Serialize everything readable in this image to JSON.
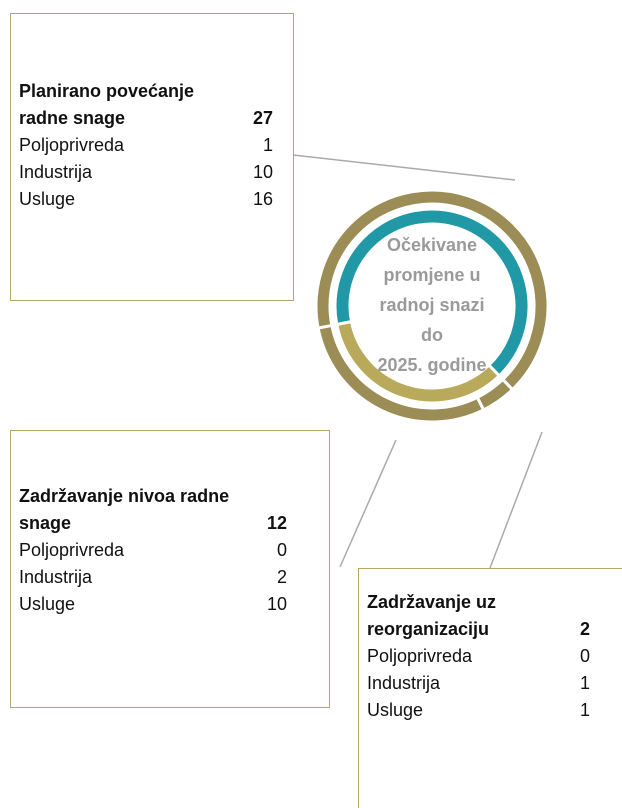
{
  "chart_data": {
    "type": "donut",
    "center_label": [
      "Očekivane",
      "promjene u",
      "radnoj snazi",
      "do",
      "2025. godine"
    ],
    "outer_color": "#9c8c55",
    "inner_colors": [
      "#2198a6",
      "#b9aa5b"
    ],
    "groups": [
      {
        "name": "Planirano povećanje radne snage",
        "value": 27,
        "breakdown": [
          {
            "name": "Poljoprivreda",
            "value": 1
          },
          {
            "name": "Industrija",
            "value": 10
          },
          {
            "name": "Usluge",
            "value": 16
          }
        ]
      },
      {
        "name": "Zadržavanje uz reorganizaciju",
        "value": 2,
        "breakdown": [
          {
            "name": "Poljoprivreda",
            "value": 0
          },
          {
            "name": "Industrija",
            "value": 1
          },
          {
            "name": "Usluge",
            "value": 1
          }
        ]
      },
      {
        "name": "Zadržavanje nivoa radne snage",
        "value": 12,
        "breakdown": [
          {
            "name": "Poljoprivreda",
            "value": 0
          },
          {
            "name": "Industrija",
            "value": 2
          },
          {
            "name": "Usluge",
            "value": 10
          }
        ]
      }
    ]
  }
}
